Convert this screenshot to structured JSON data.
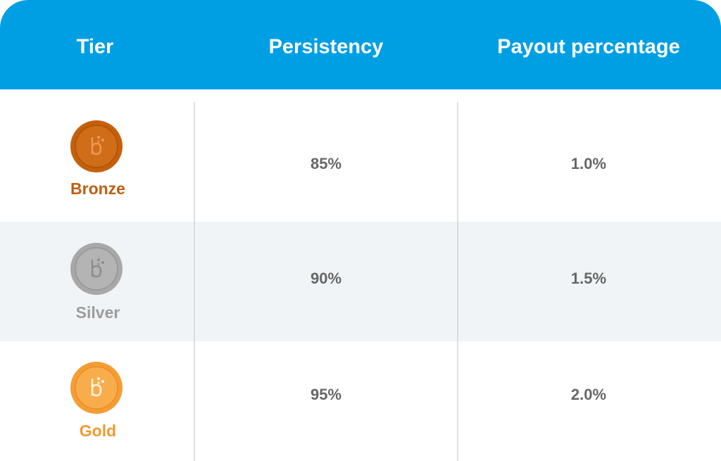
{
  "table": {
    "header": [
      "Tier",
      "Persistency",
      "Payout percentage"
    ],
    "rows": [
      [
        "Bronze",
        "85%",
        "1.0%"
      ],
      [
        "Silver",
        "90%",
        "1.5%"
      ],
      [
        "Gold",
        "95%",
        "2.0%"
      ]
    ]
  }
}
